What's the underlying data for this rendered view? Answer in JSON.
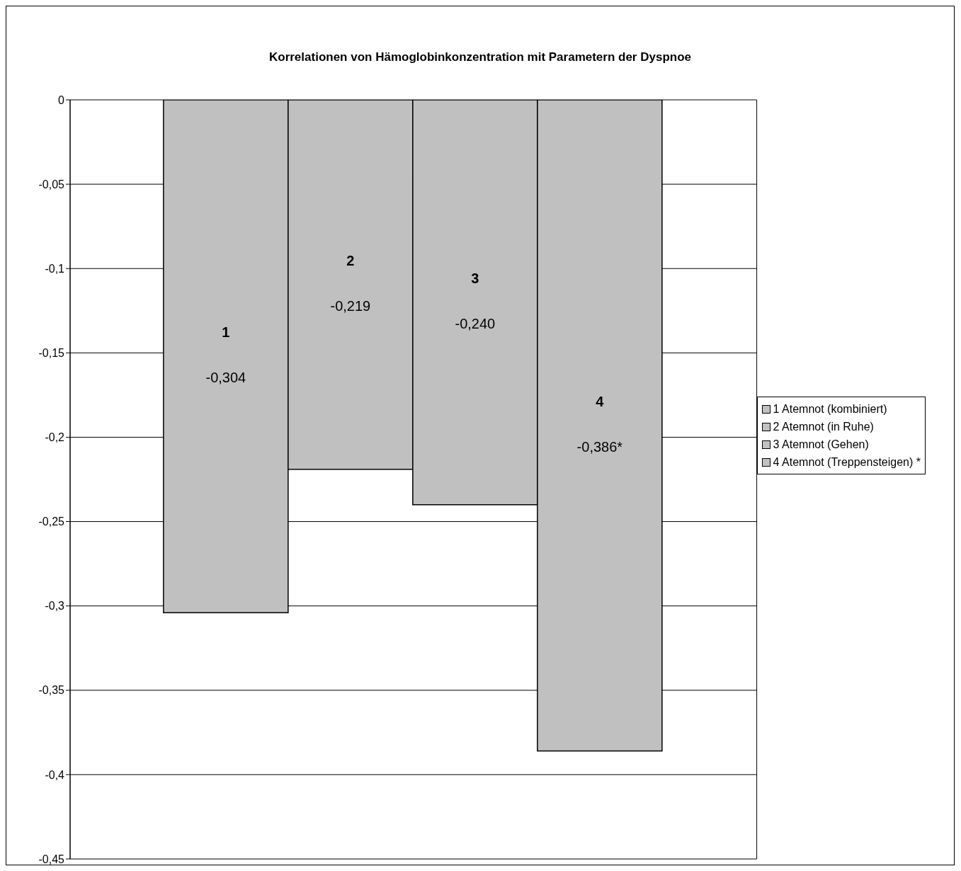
{
  "chart_data": {
    "type": "bar",
    "title": "Korrelationen von Hämoglobinkonzentration mit Parametern der Dyspnoe",
    "categories": [
      null
    ],
    "series": [
      {
        "name": "1 Atemnot (kombiniert)",
        "color": "#c0c0c0",
        "values": [
          -0.304
        ],
        "value_labels": [
          "-0,304"
        ]
      },
      {
        "name": "2 Atemnot (in Ruhe)",
        "color": "#c0c0c0",
        "values": [
          -0.219
        ],
        "value_labels": [
          "-0,219"
        ]
      },
      {
        "name": "3 Atemnot (Gehen)",
        "color": "#c0c0c0",
        "values": [
          -0.24
        ],
        "value_labels": [
          "-0,240"
        ]
      },
      {
        "name": "4 Atemnot (Treppensteigen) *",
        "color": "#c0c0c0",
        "values": [
          -0.386
        ],
        "value_labels": [
          "-0,386*"
        ]
      }
    ],
    "annotations": [
      "1",
      "2",
      "3",
      "4"
    ],
    "ylim": [
      -0.45,
      0
    ],
    "yticks": [
      {
        "value": 0,
        "label": "0"
      },
      {
        "value": -0.05,
        "label": "-0,05"
      },
      {
        "value": -0.1,
        "label": "-0,1"
      },
      {
        "value": -0.15,
        "label": "-0,15"
      },
      {
        "value": -0.2,
        "label": "-0,2"
      },
      {
        "value": -0.25,
        "label": "-0,25"
      },
      {
        "value": -0.3,
        "label": "-0,3"
      },
      {
        "value": -0.35,
        "label": "-0,35"
      },
      {
        "value": -0.4,
        "label": "-0,4"
      },
      {
        "value": -0.45,
        "label": "-0,45"
      }
    ],
    "grid": "y",
    "legend": "right"
  }
}
